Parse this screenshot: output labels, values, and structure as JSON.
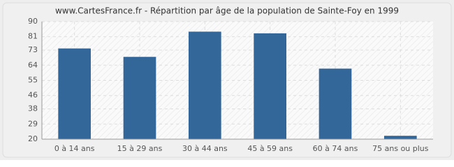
{
  "chart_data": {
    "type": "bar",
    "title": "www.CartesFrance.fr - Répartition par âge de la population de Sainte-Foy en 1999",
    "categories": [
      "0 à 14 ans",
      "15 à 29 ans",
      "30 à 44 ans",
      "45 à 59 ans",
      "60 à 74 ans",
      "75 ans ou plus"
    ],
    "values": [
      74,
      69,
      84,
      83,
      62,
      22
    ],
    "color": "#336699",
    "ylim": [
      20,
      90
    ],
    "yticks": [
      20,
      29,
      38,
      46,
      55,
      64,
      73,
      81,
      90
    ],
    "grid": true
  }
}
